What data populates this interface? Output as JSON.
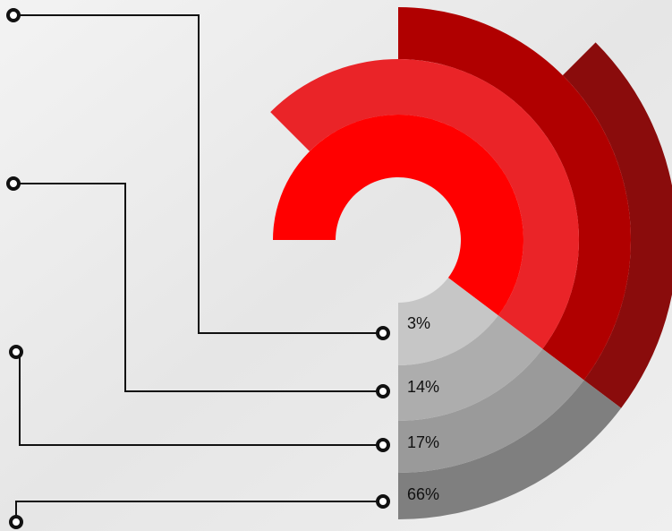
{
  "labels": [
    "3%",
    "14%",
    "17%",
    "66%"
  ]
}
